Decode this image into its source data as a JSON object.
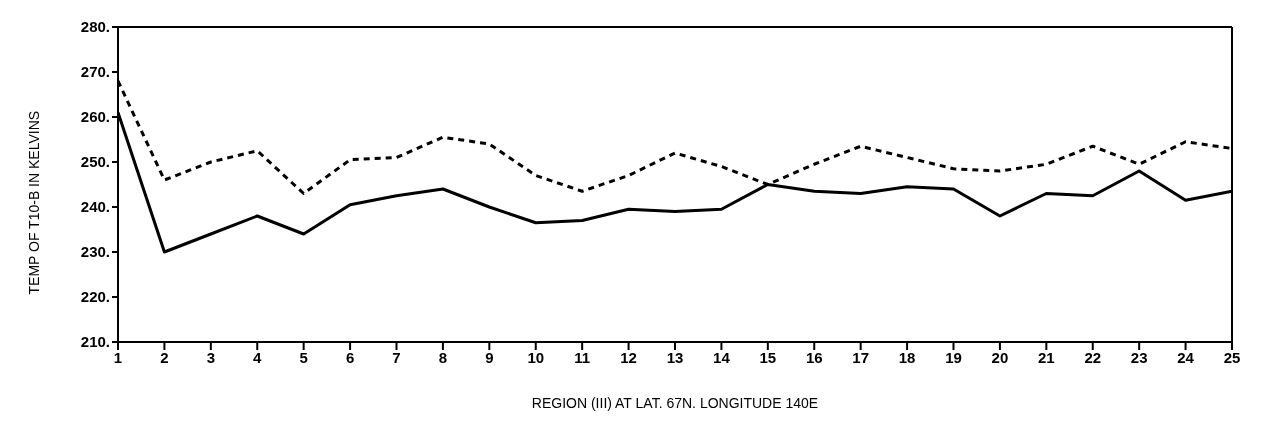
{
  "chart_data": {
    "type": "line",
    "xlabel": "REGION (III) AT LAT. 67N. LONGITUDE 140E",
    "ylabel": "TEMP OF T10-B IN KELVINS",
    "x": [
      1,
      2,
      3,
      4,
      5,
      6,
      7,
      8,
      9,
      10,
      11,
      12,
      13,
      14,
      15,
      16,
      17,
      18,
      19,
      20,
      21,
      22,
      23,
      24,
      25
    ],
    "xlim": [
      1,
      25
    ],
    "xticks": [
      1,
      2,
      3,
      4,
      5,
      6,
      7,
      8,
      9,
      10,
      11,
      12,
      13,
      14,
      15,
      16,
      17,
      18,
      19,
      20,
      21,
      22,
      23,
      24,
      25
    ],
    "ylim": [
      210,
      280
    ],
    "yticks": [
      {
        "value": 210,
        "label": "210."
      },
      {
        "value": 220,
        "label": "220."
      },
      {
        "value": 230,
        "label": "230."
      },
      {
        "value": 240,
        "label": "240."
      },
      {
        "value": 250,
        "label": "250."
      },
      {
        "value": 260,
        "label": "260."
      },
      {
        "value": 270,
        "label": "270."
      },
      {
        "value": 280,
        "label": "280."
      }
    ],
    "grid": false,
    "legend": false,
    "marker": "none",
    "series": [
      {
        "color": "#000000",
        "line_style": "solid",
        "values": [
          261,
          230,
          234,
          238,
          234,
          240.5,
          242.5,
          244,
          240,
          236.5,
          237,
          239.5,
          239,
          239.5,
          245,
          243.5,
          243,
          244.5,
          244,
          238,
          243,
          242.5,
          248,
          241.5,
          243.5
        ]
      },
      {
        "color": "#000000",
        "line_style": "dashed",
        "values": [
          268,
          246,
          250,
          252.5,
          243,
          250.5,
          251,
          255.5,
          254,
          247,
          243.5,
          247,
          252,
          249,
          245,
          249.5,
          253.5,
          251,
          248.5,
          248,
          249.5,
          253.5,
          249.5,
          254.5,
          253
        ]
      }
    ]
  }
}
